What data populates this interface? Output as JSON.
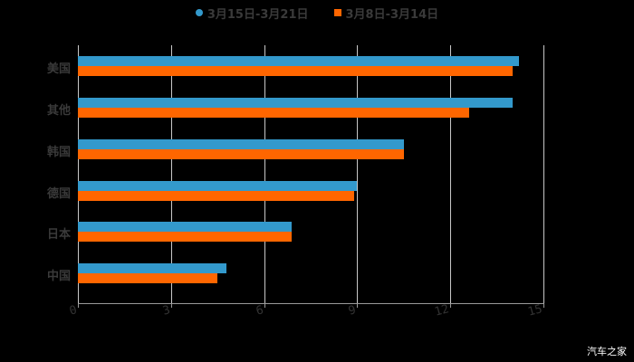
{
  "chart_data": {
    "type": "bar",
    "orientation": "horizontal",
    "title": "",
    "xlabel": "",
    "ylabel": "",
    "categories": [
      "美国",
      "其他",
      "韩国",
      "德国",
      "日本",
      "中国"
    ],
    "series": [
      {
        "name": "3月15日-3月21日",
        "color": "#3399cc",
        "values": [
          14.2,
          14.0,
          10.5,
          9.0,
          6.9,
          4.8
        ]
      },
      {
        "name": "3月8日-3月14日",
        "color": "#ff6600",
        "values": [
          14.0,
          12.6,
          10.5,
          8.9,
          6.9,
          4.5
        ]
      }
    ],
    "xlim": [
      0,
      15
    ],
    "x_ticks": [
      "0",
      "3",
      "6",
      "9",
      "12",
      "15"
    ],
    "grid": true,
    "legend_position": "top"
  },
  "legend": {
    "items": [
      {
        "label": "3月15日-3月21日",
        "color": "#3399cc",
        "shape": "circle"
      },
      {
        "label": "3月8日-3月14日",
        "color": "#ff6600",
        "shape": "square"
      }
    ]
  },
  "watermark": "汽车之家"
}
